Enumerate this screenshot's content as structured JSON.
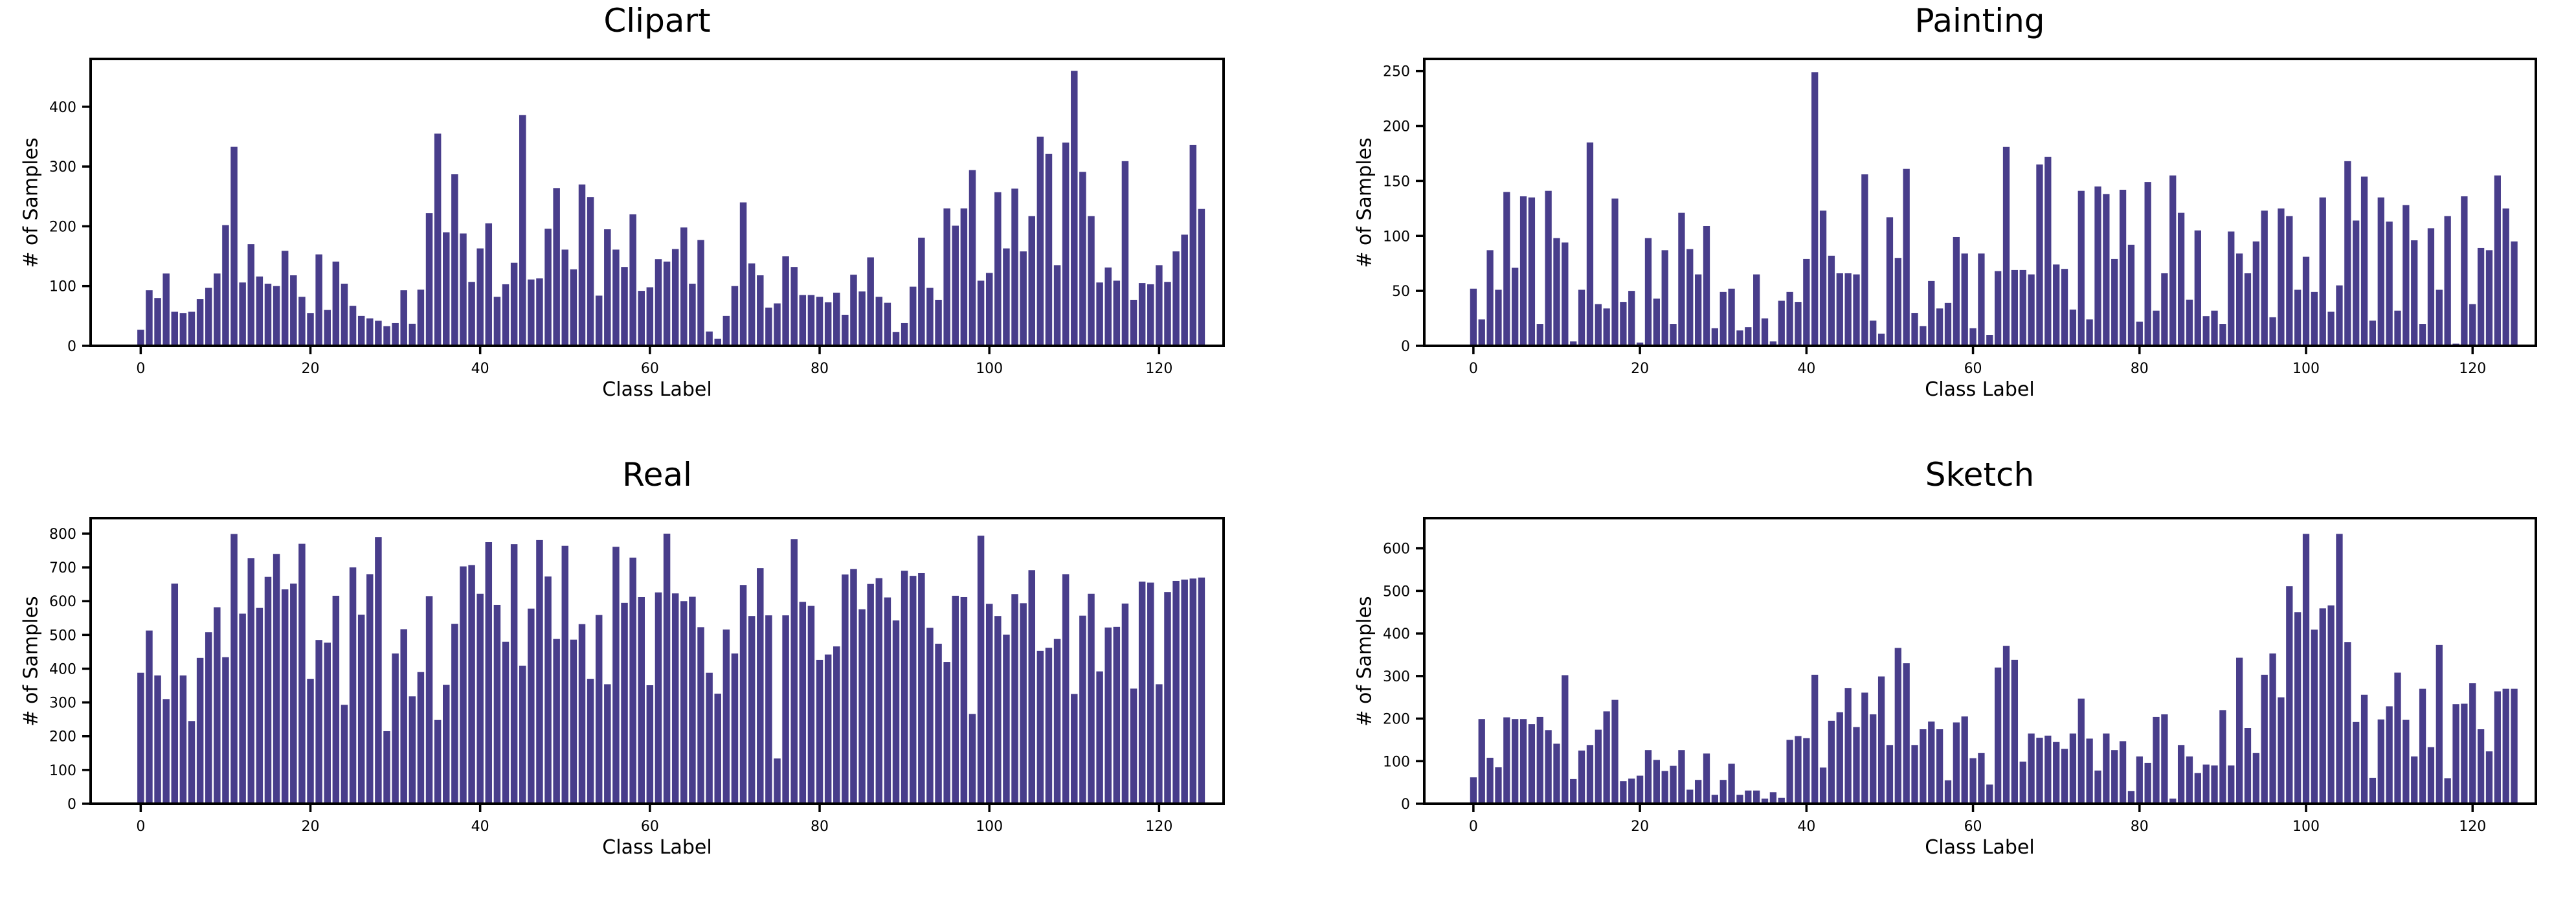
{
  "figure": {
    "background": "#ffffff",
    "grid": "off",
    "legend": "none"
  },
  "chart_data": [
    {
      "type": "bar",
      "title": "Clipart",
      "xlabel": "Class Label",
      "ylabel": "# of Samples",
      "bar_color": "#483D8B",
      "axis_color": "#000000",
      "x_start": 0,
      "xticks": [
        0,
        20,
        40,
        60,
        80,
        100,
        120
      ],
      "yticks": [
        0,
        100,
        200,
        300,
        400
      ],
      "ylim": [
        0,
        480
      ],
      "xlim": [
        -5.9,
        127.6
      ],
      "values": [
        27,
        93,
        80,
        121,
        57,
        55,
        57,
        78,
        97,
        121,
        202,
        333,
        106,
        170,
        116,
        104,
        100,
        159,
        118,
        82,
        55,
        153,
        60,
        141,
        104,
        67,
        50,
        46,
        42,
        33,
        38,
        93,
        37,
        94,
        222,
        355,
        190,
        287,
        188,
        107,
        163,
        205,
        82,
        103,
        139,
        386,
        111,
        113,
        196,
        264,
        161,
        128,
        270,
        249,
        84,
        195,
        161,
        132,
        220,
        92,
        98,
        145,
        141,
        162,
        198,
        104,
        177,
        24,
        12,
        50,
        100,
        240,
        138,
        118,
        64,
        71,
        150,
        132,
        85,
        85,
        82,
        73,
        89,
        52,
        119,
        91,
        148,
        82,
        72,
        23,
        38,
        99,
        181,
        97,
        77,
        230,
        201,
        230,
        294,
        109,
        122,
        257,
        163,
        263,
        158,
        217,
        350,
        321,
        135,
        340,
        460,
        291,
        217,
        106,
        131,
        109,
        309,
        77,
        105,
        103,
        135,
        107,
        158,
        186,
        336,
        229
      ]
    },
    {
      "type": "bar",
      "title": "Painting",
      "xlabel": "Class Label",
      "ylabel": "# of Samples",
      "bar_color": "#483D8B",
      "axis_color": "#000000",
      "x_start": 0,
      "xticks": [
        0,
        20,
        40,
        60,
        80,
        100,
        120
      ],
      "yticks": [
        0,
        50,
        100,
        150,
        200,
        250
      ],
      "ylim": [
        0,
        261
      ],
      "xlim": [
        -5.9,
        127.6
      ],
      "values": [
        52,
        24,
        87,
        51,
        140,
        71,
        136,
        135,
        20,
        141,
        98,
        94,
        4,
        51,
        185,
        38,
        34,
        134,
        40,
        50,
        3,
        98,
        43,
        87,
        20,
        121,
        88,
        65,
        109,
        16,
        49,
        52,
        14,
        17,
        65,
        25,
        4,
        41,
        49,
        40,
        79,
        249,
        123,
        82,
        66,
        66,
        65,
        156,
        23,
        11,
        117,
        80,
        161,
        30,
        18,
        59,
        34,
        39,
        99,
        84,
        16,
        84,
        10,
        68,
        181,
        69,
        69,
        65,
        165,
        172,
        74,
        70,
        33,
        141,
        24,
        145,
        138,
        79,
        142,
        92,
        22,
        149,
        32,
        66,
        155,
        121,
        42,
        105,
        27,
        32,
        20,
        104,
        84,
        66,
        95,
        123,
        26,
        125,
        118,
        51,
        81,
        49,
        135,
        31,
        55,
        168,
        114,
        154,
        23,
        135,
        113,
        32,
        128,
        96,
        20,
        107,
        51,
        118,
        2,
        136,
        38,
        89,
        87,
        155,
        125,
        95
      ]
    },
    {
      "type": "bar",
      "title": "Real",
      "xlabel": "Class Label",
      "ylabel": "# of Samples",
      "bar_color": "#483D8B",
      "axis_color": "#000000",
      "x_start": 0,
      "xticks": [
        0,
        20,
        40,
        60,
        80,
        100,
        120
      ],
      "yticks": [
        0,
        100,
        200,
        300,
        400,
        500,
        600,
        700,
        800
      ],
      "ylim": [
        0,
        846
      ],
      "xlim": [
        -5.9,
        127.6
      ],
      "values": [
        388,
        513,
        380,
        310,
        652,
        380,
        245,
        432,
        508,
        582,
        434,
        799,
        563,
        727,
        580,
        672,
        740,
        635,
        652,
        770,
        370,
        485,
        477,
        616,
        293,
        700,
        560,
        680,
        790,
        215,
        445,
        517,
        318,
        390,
        615,
        248,
        352,
        533,
        703,
        707,
        622,
        775,
        589,
        480,
        769,
        409,
        578,
        781,
        673,
        488,
        764,
        486,
        532,
        370,
        559,
        354,
        761,
        595,
        729,
        612,
        351,
        626,
        800,
        623,
        600,
        613,
        523,
        388,
        326,
        516,
        445,
        648,
        556,
        698,
        558,
        134,
        558,
        784,
        598,
        586,
        426,
        442,
        466,
        679,
        695,
        576,
        651,
        668,
        611,
        543,
        690,
        675,
        683,
        521,
        474,
        420,
        616,
        612,
        266,
        794,
        592,
        556,
        501,
        621,
        594,
        692,
        453,
        462,
        488,
        680,
        325,
        557,
        622,
        392,
        522,
        524,
        593,
        341,
        658,
        655,
        354,
        627,
        660,
        664,
        667,
        670
      ]
    },
    {
      "type": "bar",
      "title": "Sketch",
      "xlabel": "Class Label",
      "ylabel": "# of Samples",
      "bar_color": "#483D8B",
      "axis_color": "#000000",
      "x_start": 0,
      "xticks": [
        0,
        20,
        40,
        60,
        80,
        100,
        120
      ],
      "yticks": [
        0,
        100,
        200,
        300,
        400,
        500,
        600
      ],
      "ylim": [
        0,
        671
      ],
      "xlim": [
        -5.9,
        127.6
      ],
      "values": [
        62,
        199,
        108,
        86,
        203,
        199,
        199,
        187,
        204,
        173,
        141,
        302,
        58,
        125,
        138,
        174,
        217,
        244,
        53,
        59,
        66,
        126,
        103,
        77,
        89,
        126,
        33,
        56,
        118,
        21,
        56,
        94,
        21,
        31,
        31,
        12,
        27,
        14,
        150,
        159,
        154,
        303,
        85,
        195,
        215,
        272,
        180,
        261,
        210,
        299,
        138,
        366,
        330,
        138,
        175,
        193,
        175,
        55,
        191,
        205,
        107,
        119,
        45,
        320,
        371,
        338,
        99,
        165,
        155,
        160,
        145,
        129,
        165,
        247,
        153,
        78,
        165,
        126,
        147,
        30,
        111,
        96,
        204,
        210,
        12,
        138,
        111,
        72,
        92,
        90,
        220,
        90,
        343,
        178,
        119,
        303,
        353,
        250,
        511,
        450,
        634,
        409,
        459,
        466,
        634,
        380,
        192,
        256,
        61,
        198,
        229,
        308,
        197,
        111,
        270,
        133,
        373,
        60,
        234,
        235,
        283,
        175,
        123,
        264,
        270,
        270
      ]
    }
  ]
}
